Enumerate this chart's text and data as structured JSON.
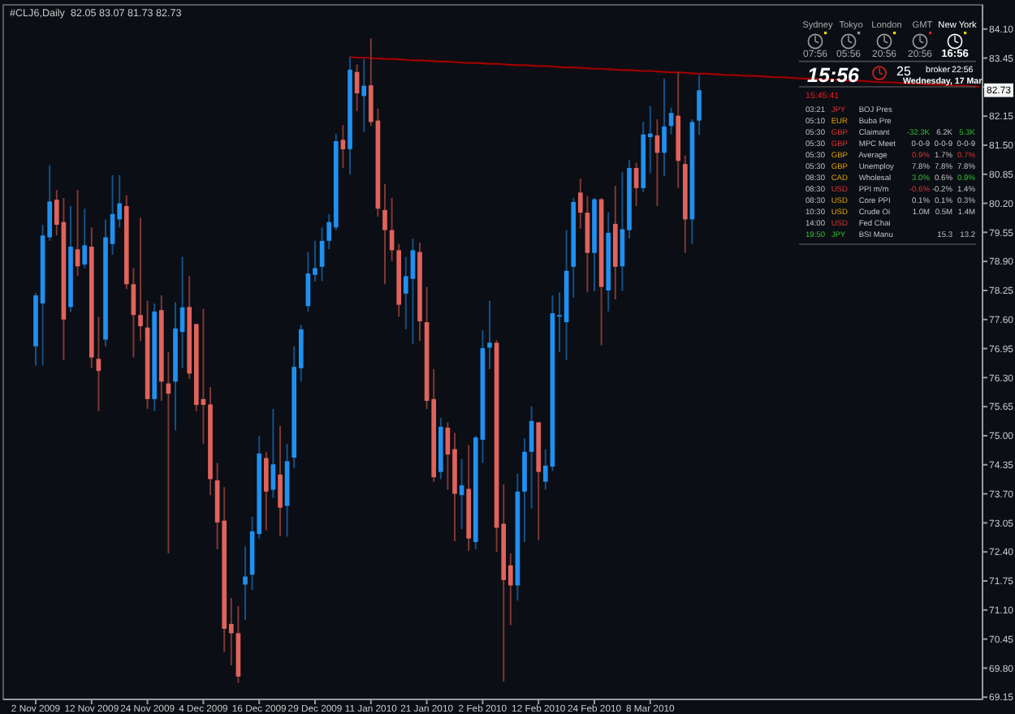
{
  "chart_data": [
    {
      "type": "candlestick",
      "title": "#CLJ6,Daily  82.05 83.07 81.73 82.73",
      "categories": [
        "2 Nov 2009",
        null,
        null,
        null,
        null,
        null,
        null,
        null,
        "12 Nov 2009",
        null,
        null,
        null,
        null,
        null,
        null,
        null,
        "24 Nov 2009",
        null,
        null,
        null,
        null,
        null,
        null,
        null,
        "4 Dec 2009",
        null,
        null,
        null,
        null,
        null,
        null,
        null,
        "16 Dec 2009",
        null,
        null,
        null,
        null,
        null,
        null,
        null,
        "29 Dec 2009",
        null,
        null,
        null,
        null,
        null,
        null,
        null,
        "11 Jan 2010",
        null,
        null,
        null,
        null,
        null,
        null,
        null,
        "21 Jan 2010",
        null,
        null,
        null,
        null,
        null,
        null,
        null,
        "2 Feb 2010",
        null,
        null,
        null,
        null,
        null,
        null,
        null,
        "12 Feb 2010",
        null,
        null,
        null,
        null,
        null,
        null,
        null,
        "24 Feb 2010",
        null,
        null,
        null,
        null,
        null,
        null,
        null,
        "8 Mar 2010",
        null,
        null,
        null,
        null,
        null,
        null,
        null,
        null,
        null,
        null,
        null,
        null,
        null,
        null,
        null,
        null,
        null,
        null,
        null,
        null,
        null,
        null,
        null,
        null,
        null,
        null,
        null,
        null,
        null,
        null,
        null,
        null,
        null,
        null,
        null,
        null,
        null,
        null,
        null,
        null,
        null,
        null,
        null,
        null,
        null,
        null,
        null
      ],
      "ohlc": [
        [
          77.0,
          78.2,
          76.57,
          78.14
        ],
        [
          77.96,
          79.72,
          76.57,
          79.48
        ],
        [
          79.44,
          81.05,
          79.36,
          80.24
        ],
        [
          80.28,
          80.5,
          79.48,
          79.72
        ],
        [
          79.78,
          80.32,
          76.69,
          77.6
        ],
        [
          77.88,
          80.14,
          77.77,
          79.23
        ],
        [
          79.17,
          80.5,
          78.57,
          78.79
        ],
        [
          78.83,
          80.08,
          78.75,
          79.26
        ],
        [
          79.23,
          79.66,
          76.51,
          76.75
        ],
        [
          76.72,
          77.66,
          75.55,
          76.45
        ],
        [
          77.15,
          79.84,
          77.0,
          79.44
        ],
        [
          79.29,
          80.83,
          79.05,
          79.96
        ],
        [
          79.84,
          80.83,
          79.66,
          80.2
        ],
        [
          80.14,
          80.38,
          78.28,
          78.39
        ],
        [
          78.39,
          78.75,
          76.75,
          77.7
        ],
        [
          77.7,
          79.88,
          77.12,
          77.45
        ],
        [
          77.42,
          78.02,
          75.6,
          75.82
        ],
        [
          75.82,
          77.96,
          75.55,
          77.78
        ],
        [
          77.81,
          78.14,
          75.78,
          76.21
        ],
        [
          76.17,
          76.87,
          72.37,
          75.94
        ],
        [
          76.21,
          77.99,
          75.12,
          77.4
        ],
        [
          77.32,
          79.0,
          76.51,
          77.87
        ],
        [
          77.88,
          78.57,
          76.27,
          76.39
        ],
        [
          77.5,
          77.5,
          75.55,
          75.69
        ],
        [
          75.82,
          77.84,
          74.82,
          75.69
        ],
        [
          75.7,
          76.09,
          73.67,
          74.03
        ],
        [
          74.0,
          74.39,
          72.46,
          73.06
        ],
        [
          73.1,
          73.85,
          70.16,
          70.68
        ],
        [
          70.79,
          71.37,
          69.86,
          70.58
        ],
        [
          70.58,
          71.19,
          69.47,
          69.61
        ],
        [
          71.67,
          72.52,
          70.88,
          71.85
        ],
        [
          71.89,
          73.19,
          71.55,
          72.86
        ],
        [
          72.8,
          75.0,
          72.7,
          74.6
        ],
        [
          74.5,
          74.64,
          72.88,
          73.75
        ],
        [
          73.79,
          75.6,
          73.61,
          74.36
        ],
        [
          74.13,
          75.22,
          72.76,
          73.39
        ],
        [
          73.43,
          74.82,
          72.74,
          74.43
        ],
        [
          74.51,
          77.0,
          74.27,
          76.54
        ],
        [
          76.51,
          77.48,
          76.21,
          77.38
        ],
        [
          77.9,
          79.11,
          77.78,
          78.63
        ],
        [
          78.6,
          79.36,
          78.45,
          78.75
        ],
        [
          78.78,
          79.66,
          78.46,
          79.36
        ],
        [
          79.36,
          79.96,
          79.17,
          79.78
        ],
        [
          79.66,
          81.75,
          79.6,
          81.59
        ],
        [
          81.62,
          81.95,
          80.99,
          81.41
        ],
        [
          81.41,
          83.47,
          80.84,
          83.19
        ],
        [
          83.14,
          83.31,
          82.26,
          82.66
        ],
        [
          82.6,
          83.43,
          81.8,
          82.83
        ],
        [
          82.84,
          83.89,
          81.93,
          82.02
        ],
        [
          82.05,
          82.32,
          79.9,
          80.08
        ],
        [
          80.05,
          80.63,
          78.39,
          79.6
        ],
        [
          79.6,
          80.32,
          78.91,
          79.15
        ],
        [
          79.15,
          79.29,
          77.66,
          77.93
        ],
        [
          78.18,
          79.0,
          77.38,
          78.57
        ],
        [
          78.51,
          79.41,
          77.05,
          79.15
        ],
        [
          79.11,
          79.32,
          77.12,
          77.56
        ],
        [
          77.54,
          78.33,
          75.6,
          75.78
        ],
        [
          75.82,
          76.49,
          73.97,
          74.07
        ],
        [
          74.19,
          75.4,
          74.03,
          75.2
        ],
        [
          75.18,
          75.3,
          73.79,
          74.58
        ],
        [
          74.7,
          75.06,
          72.64,
          73.7
        ],
        [
          73.67,
          74.48,
          72.91,
          73.89
        ],
        [
          73.81,
          74.79,
          72.42,
          72.7
        ],
        [
          72.62,
          75.0,
          72.46,
          74.96
        ],
        [
          74.91,
          77.36,
          74.39,
          76.96
        ],
        [
          76.97,
          78.02,
          76.49,
          77.08
        ],
        [
          77.08,
          77.14,
          72.4,
          72.94
        ],
        [
          73.03,
          73.91,
          69.5,
          71.77
        ],
        [
          72.1,
          72.37,
          70.76,
          71.65
        ],
        [
          71.65,
          74.15,
          71.31,
          73.75
        ],
        [
          73.75,
          74.94,
          72.62,
          74.64
        ],
        [
          74.64,
          75.66,
          73.37,
          75.33
        ],
        [
          75.3,
          75.3,
          72.66,
          74.19
        ],
        [
          73.97,
          74.7,
          73.79,
          74.33
        ],
        [
          74.31,
          78.14,
          74.21,
          77.74
        ],
        [
          77.68,
          78.21,
          76.87,
          77.7
        ],
        [
          77.54,
          79.6,
          76.69,
          78.69
        ],
        [
          78.78,
          80.32,
          78.09,
          80.23
        ],
        [
          80.44,
          80.75,
          79.63,
          79.99
        ],
        [
          79.99,
          80.36,
          78.21,
          79.09
        ],
        [
          79.09,
          80.32,
          78.23,
          80.29
        ],
        [
          80.29,
          80.32,
          77.02,
          78.33
        ],
        [
          78.25,
          80.0,
          77.78,
          79.54
        ],
        [
          79.74,
          80.59,
          78.05,
          78.78
        ],
        [
          78.79,
          80.9,
          78.24,
          79.62
        ],
        [
          79.6,
          81.17,
          79.41,
          80.99
        ],
        [
          80.99,
          81.11,
          80.14,
          80.54
        ],
        [
          80.54,
          82.02,
          80.45,
          81.74
        ],
        [
          81.68,
          82.38,
          80.87,
          81.76
        ],
        [
          81.72,
          82.08,
          80.14,
          81.33
        ],
        [
          81.33,
          82.99,
          80.81,
          81.92
        ],
        [
          81.93,
          82.34,
          81.74,
          82.22
        ],
        [
          82.16,
          83.13,
          80.54,
          81.15
        ],
        [
          81.08,
          81.27,
          79.09,
          79.84
        ],
        [
          79.84,
          82.08,
          79.29,
          82.02
        ],
        [
          82.05,
          83.07,
          81.73,
          82.73
        ],
        null,
        null,
        null,
        null,
        null,
        null,
        null,
        null,
        null,
        null,
        null,
        null,
        null,
        null,
        null,
        null,
        null,
        null,
        null,
        null,
        null,
        null,
        null,
        null,
        null,
        null,
        null,
        null,
        null,
        null,
        null,
        null,
        null,
        null,
        null,
        null,
        null,
        null,
        null,
        null
      ],
      "colors": [
        "#2090f0",
        "#2090f0",
        "#2090f0",
        "#e0635c",
        "#e0635c",
        "#2090f0",
        "#e0635c",
        "#2090f0",
        "#e0635c",
        "#e0635c",
        "#2090f0",
        "#2090f0",
        "#2090f0",
        "#e0635c",
        "#e0635c",
        "#e0635c",
        "#e0635c",
        "#2090f0",
        "#e0635c",
        "#e0635c",
        "#2090f0",
        "#2090f0",
        "#e0635c",
        "#e0635c",
        "#e0635c",
        "#e0635c",
        "#e0635c",
        "#e0635c",
        "#e0635c",
        "#e0635c",
        "#2090f0",
        "#2090f0",
        "#2090f0",
        "#e0635c",
        "#2090f0",
        "#e0635c",
        "#2090f0",
        "#2090f0",
        "#2090f0",
        "#2090f0",
        "#2090f0",
        "#2090f0",
        "#2090f0",
        "#2090f0",
        "#e0635c",
        "#2090f0",
        "#e0635c",
        "#2090f0",
        "#e0635c",
        "#e0635c",
        "#e0635c",
        "#e0635c",
        "#e0635c",
        "#2090f0",
        "#2090f0",
        "#e0635c",
        "#e0635c",
        "#e0635c",
        "#2090f0",
        "#e0635c",
        "#e0635c",
        "#2090f0",
        "#e0635c",
        "#2090f0",
        "#2090f0",
        "#2090f0",
        "#e0635c",
        "#e0635c",
        "#e0635c",
        "#2090f0",
        "#2090f0",
        "#2090f0",
        "#e0635c",
        "#2090f0",
        "#2090f0",
        "#2090f0",
        "#2090f0",
        "#2090f0",
        "#e0635c",
        "#e0635c",
        "#2090f0",
        "#e0635c",
        "#2090f0",
        "#e0635c",
        "#2090f0",
        "#2090f0",
        "#e0635c",
        "#2090f0",
        "#2090f0",
        "#e0635c",
        "#2090f0",
        "#2090f0",
        "#e0635c",
        "#e0635c",
        "#2090f0",
        "#2090f0",
        null,
        null,
        null,
        null,
        null,
        null,
        null,
        null,
        null,
        null,
        null,
        null,
        null,
        null,
        null,
        null,
        null,
        null,
        null,
        null,
        null,
        null,
        null,
        null,
        null,
        null,
        null,
        null,
        null,
        null,
        null,
        null,
        null,
        null,
        null,
        null,
        null,
        null,
        null,
        null
      ],
      "series": [
        {
          "type": "line",
          "color": "#a00000",
          "values": [
            null,
            null,
            null,
            null,
            null,
            null,
            null,
            null,
            null,
            null,
            null,
            null,
            null,
            null,
            null,
            null,
            null,
            null,
            null,
            null,
            null,
            null,
            null,
            null,
            null,
            null,
            null,
            null,
            null,
            null,
            null,
            null,
            null,
            null,
            null,
            null,
            null,
            null,
            null,
            null,
            null,
            null,
            null,
            null,
            null,
            83.47,
            83.46,
            83.46,
            83.45,
            83.44,
            83.43,
            83.43,
            83.42,
            83.41,
            83.4,
            83.4,
            83.39,
            83.38,
            83.37,
            83.37,
            83.36,
            83.35,
            83.34,
            83.34,
            83.33,
            83.32,
            83.32,
            83.31,
            83.3,
            83.29,
            83.29,
            83.28,
            83.27,
            83.27,
            83.26,
            83.25,
            83.24,
            83.24,
            83.23,
            83.22,
            83.21,
            83.21,
            83.2,
            83.19,
            83.18,
            83.18,
            83.17,
            83.16,
            83.16,
            83.15,
            83.14,
            83.13,
            83.13,
            83.12,
            83.11,
            83.1,
            83.1,
            83.09,
            83.08,
            83.07,
            83.07,
            83.06,
            83.05,
            83.05,
            83.04,
            83.03,
            83.02,
            83.02,
            83.01,
            83.0,
            82.99,
            82.99,
            82.98,
            82.97,
            82.97,
            82.96,
            82.95,
            82.94,
            82.94,
            82.93,
            82.92,
            82.91,
            82.91,
            82.9,
            82.89,
            82.88,
            82.88,
            82.87,
            82.86,
            82.86,
            82.85,
            82.84,
            82.83,
            82.83,
            82.82,
            82.81
          ]
        }
      ],
      "ylim": [
        69.1,
        84.64
      ],
      "yticks": [
        69.15,
        {
          "value": 69.8,
          "label": "69.80"
        },
        70.45,
        {
          "value": 71.1,
          "label": "71.10"
        },
        71.75,
        {
          "value": 72.4,
          "label": "72.40"
        },
        73.05,
        {
          "value": 73.7,
          "label": "73.70"
        },
        74.35,
        {
          "value": 75,
          "label": "75.00"
        },
        75.65,
        {
          "value": 76.3,
          "label": "76.30"
        },
        76.95,
        {
          "value": 77.6,
          "label": "77.60"
        },
        78.25,
        {
          "value": 78.9,
          "label": "78.90"
        },
        79.55,
        {
          "value": 80.2,
          "label": "80.20"
        },
        80.85,
        {
          "value": 81.5,
          "label": "81.50"
        },
        82.15,
        {
          "value": 82.8,
          "label": null
        },
        83.45,
        {
          "value": 84.1,
          "label": "84.10"
        }
      ],
      "annotations": [
        {
          "text": "82.73",
          "y": 82.73
        }
      ]
    },
    {
      "type": "other",
      "annotations": [
        "Sydney",
        "Tokyo",
        "London",
        "GMT",
        "New York",
        "07:56",
        "05:56",
        "20:56",
        "20:56",
        "16:56",
        "15:56",
        "25",
        "broker",
        "22:56",
        "Wednesday, 17 Mar",
        "15:45:41",
        "03:21  JPY  BOJ Pres",
        "05:10  EUR  Buba Pre",
        "05:30  GBP  Claimant  -32.3K  6.2K  5.3K",
        "05:30  GBP  MPC Meet  0-0-9  0-0-9  0-0-9",
        "05:30  GBP  Average  0.9%  1.7%  0.7%",
        "05:30  GBP  Unemploy  7.8%  7.8%  7.8%",
        "08:30  CAD  Wholesal  3.0%  0.6%  0.9%",
        "08:30  USD  PPI m/m  -0.6%  -0.2%  1.4%",
        "08:30  USD  Core PPI  0.1%  0.1%  0.3%",
        "10:30  USD  Crude Oi  1.0M  0.5M  1.4M",
        "14:00  USD  Fed Chai",
        "19:50  JPY  BSI Manu  15.3  13.2"
      ]
    }
  ]
}
